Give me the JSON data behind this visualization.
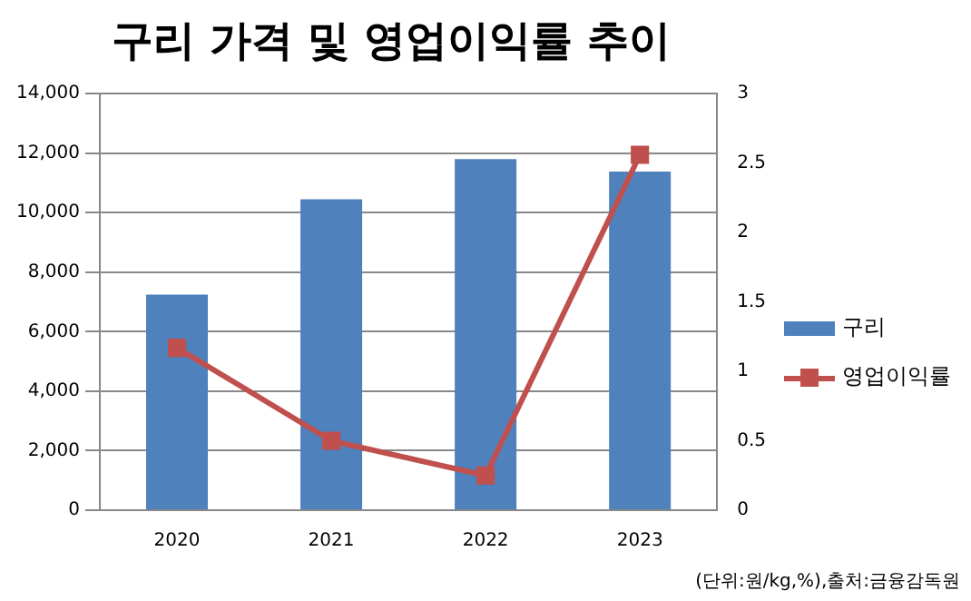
{
  "chart_data": {
    "type": "bar",
    "title": "구리 가격 및 영업이익률 추이",
    "categories": [
      "2020",
      "2021",
      "2022",
      "2023"
    ],
    "series": [
      {
        "name": "구리",
        "color": "#4f81bd",
        "values": [
          7250,
          10450,
          11800,
          11380
        ]
      },
      {
        "name": "영업이익률",
        "type": "line",
        "axis": "y2",
        "color": "#c0504d",
        "marker": "square",
        "values": [
          1.17,
          0.5,
          0.25,
          2.56
        ]
      }
    ],
    "ylim": [
      0,
      14000
    ],
    "yticks": [
      0,
      {
        "value": 2000,
        "label": "2,000"
      },
      {
        "value": 4000,
        "label": "4,000"
      },
      {
        "value": 6000,
        "label": "6,000"
      },
      {
        "value": 8000,
        "label": "8,000"
      },
      {
        "value": 10000,
        "label": "10,000"
      },
      {
        "value": 12000,
        "label": "12,000"
      },
      {
        "value": 14000,
        "label": "14,000"
      }
    ],
    "y2lim": [
      0,
      3
    ],
    "y2ticks": [
      0,
      0.5,
      1,
      1.5,
      2,
      2.5,
      3
    ],
    "grid": "y",
    "legend": "right",
    "annotations": [
      "(단위:원/kg,%),출처:금융감독원"
    ]
  }
}
